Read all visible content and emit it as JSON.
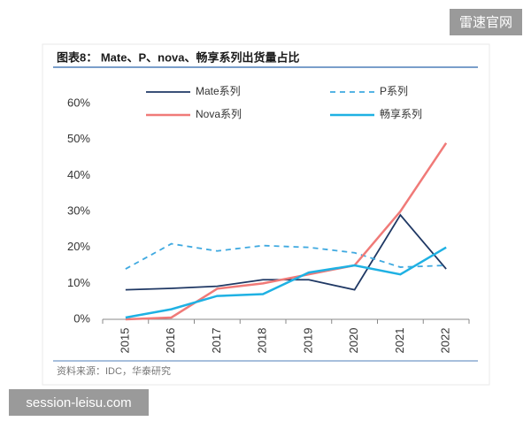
{
  "watermarks": {
    "top_right": "雷速官网",
    "bottom_left": "session-leisu.com"
  },
  "chart_data": {
    "type": "line",
    "title": "图表8：  Mate、P、nova、畅享系列出货量占比",
    "source": "资料来源：IDC，华泰研究",
    "categories": [
      "2015",
      "2016",
      "2017",
      "2018",
      "2019",
      "2020",
      "2021",
      "2022"
    ],
    "ylim": [
      0,
      60
    ],
    "yticks": [
      {
        "value": 0,
        "label": "0%"
      },
      {
        "value": 10,
        "label": "10%"
      },
      {
        "value": 20,
        "label": "20%"
      },
      {
        "value": 30,
        "label": "30%"
      },
      {
        "value": 40,
        "label": "40%"
      },
      {
        "value": 50,
        "label": "50%"
      },
      {
        "value": 60,
        "label": "60%"
      }
    ],
    "series": [
      {
        "name": "Mate系列",
        "color": "#1f3864",
        "dash": false,
        "values": [
          8.2,
          8.6,
          9.2,
          11,
          11,
          8.2,
          29,
          14
        ]
      },
      {
        "name": "P系列",
        "color": "#3fa9e0",
        "dash": true,
        "values": [
          14,
          21,
          19,
          20.5,
          20,
          18.5,
          14.5,
          15
        ]
      },
      {
        "name": "Nova系列",
        "color": "#f07a78",
        "dash": false,
        "values": [
          0,
          0.5,
          8.5,
          10,
          12.5,
          15,
          30,
          49
        ]
      },
      {
        "name": "畅享系列",
        "color": "#1fb1e3",
        "dash": false,
        "values": [
          0.5,
          2.8,
          6.5,
          7,
          13,
          15,
          12.5,
          20
        ]
      }
    ]
  }
}
